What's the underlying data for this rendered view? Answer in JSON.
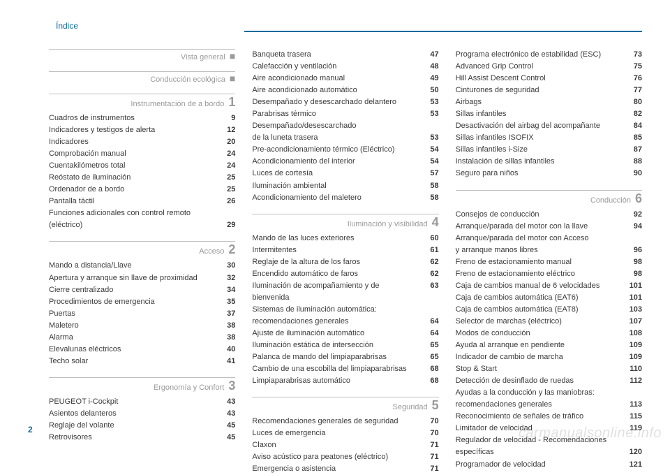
{
  "header": {
    "title": "Índice"
  },
  "page_number": "2",
  "watermark": "carmanualsonline.info",
  "colors": {
    "accent": "#0a6a9e",
    "muted": "#9a9a9a",
    "text": "#3a3a3a",
    "rule": "#bfbfbf",
    "bg": "#ffffff"
  },
  "col1": {
    "sections": [
      {
        "title": "Vista general",
        "marker": "■",
        "items": []
      },
      {
        "title": "Conducción ecológica",
        "marker": "■",
        "items": []
      },
      {
        "title": "Instrumentación de a bordo",
        "marker": "1",
        "items": [
          {
            "label": "Cuadros de instrumentos",
            "pg": "9"
          },
          {
            "label": "Indicadores y testigos de alerta",
            "pg": "12"
          },
          {
            "label": "Indicadores",
            "pg": "20"
          },
          {
            "label": "Comprobación manual",
            "pg": "24"
          },
          {
            "label": "Cuentakilómetros total",
            "pg": "24"
          },
          {
            "label": "Reóstato de iluminación",
            "pg": "25"
          },
          {
            "label": "Ordenador de a bordo",
            "pg": "25"
          },
          {
            "label": "Pantalla táctil",
            "pg": "26"
          },
          {
            "label": "Funciones adicionales con control remoto",
            "cont": true
          },
          {
            "label": "(eléctrico)",
            "pg": "29"
          }
        ]
      },
      {
        "title": "Acceso",
        "marker": "2",
        "items": [
          {
            "label": "Mando a distancia/Llave",
            "pg": "30"
          },
          {
            "label": "Apertura y arranque sin llave de proximidad",
            "pg": "32"
          },
          {
            "label": "Cierre centralizado",
            "pg": "34"
          },
          {
            "label": "Procedimientos de emergencia",
            "pg": "35"
          },
          {
            "label": "Puertas",
            "pg": "37"
          },
          {
            "label": "Maletero",
            "pg": "38"
          },
          {
            "label": "Alarma",
            "pg": "38"
          },
          {
            "label": "Elevalunas eléctricos",
            "pg": "40"
          },
          {
            "label": "Techo solar",
            "pg": "41"
          }
        ]
      },
      {
        "title": "Ergonomía y Confort",
        "marker": "3",
        "items": [
          {
            "label": "PEUGEOT i-Cockpit",
            "pg": "43"
          },
          {
            "label": "Asientos delanteros",
            "pg": "43"
          },
          {
            "label": "Reglaje del volante",
            "pg": "45"
          },
          {
            "label": "Retrovisores",
            "pg": "45"
          }
        ]
      }
    ]
  },
  "col2": {
    "top_items": [
      {
        "label": "Banqueta trasera",
        "pg": "47"
      },
      {
        "label": "Calefacción y ventilación",
        "pg": "48"
      },
      {
        "label": "Aire acondicionado manual",
        "pg": "49"
      },
      {
        "label": "Aire acondicionado automático",
        "pg": "50"
      },
      {
        "label": "Desempañado y desescarchado delantero",
        "pg": "53"
      },
      {
        "label": "Parabrisas térmico",
        "pg": "53"
      },
      {
        "label": "Desempañado/desescarchado",
        "cont": true
      },
      {
        "label": "de la luneta trasera",
        "pg": "53"
      },
      {
        "label": "Pre-acondicionamiento térmico (Eléctrico)",
        "pg": "54"
      },
      {
        "label": "Acondicionamiento del interior",
        "pg": "54"
      },
      {
        "label": "Luces de cortesía",
        "pg": "57"
      },
      {
        "label": "Iluminación ambiental",
        "pg": "58"
      },
      {
        "label": "Acondicionamiento del maletero",
        "pg": "58"
      }
    ],
    "sections": [
      {
        "title": "Iluminación y visibilidad",
        "marker": "4",
        "items": [
          {
            "label": "Mando de las luces exteriores",
            "pg": "60"
          },
          {
            "label": "Intermitentes",
            "pg": "61"
          },
          {
            "label": "Reglaje de la altura de los faros",
            "pg": "62"
          },
          {
            "label": "Encendido automático de faros",
            "pg": "62"
          },
          {
            "label": "Iluminación de acompañamiento y de bienvenida",
            "pg": "63"
          },
          {
            "label": "Sistemas de iluminación automática:",
            "cont": true
          },
          {
            "label": "recomendaciones generales",
            "pg": "64"
          },
          {
            "label": "Ajuste de iluminación automático",
            "pg": "64"
          },
          {
            "label": "Iluminación estática de intersección",
            "pg": "65"
          },
          {
            "label": "Palanca de mando del limpiaparabrisas",
            "pg": "65"
          },
          {
            "label": "Cambio de una escobilla del limpiaparabrisas",
            "pg": "68"
          },
          {
            "label": "Limpiaparabrisas automático",
            "pg": "68"
          }
        ]
      },
      {
        "title": "Seguridad",
        "marker": "5",
        "items": [
          {
            "label": "Recomendaciones generales de seguridad",
            "pg": "70"
          },
          {
            "label": "Luces de emergencia",
            "pg": "70"
          },
          {
            "label": "Claxon",
            "pg": "71"
          },
          {
            "label": "Aviso acústico para peatones (eléctrico)",
            "pg": "71"
          },
          {
            "label": "Emergencia o asistencia",
            "pg": "71"
          }
        ]
      }
    ]
  },
  "col3": {
    "top_items": [
      {
        "label": "Programa electrónico de estabilidad (ESC)",
        "pg": "73"
      },
      {
        "label": "Advanced Grip Control",
        "pg": "75"
      },
      {
        "label": "Hill Assist Descent Control",
        "pg": "76"
      },
      {
        "label": "Cinturones de seguridad",
        "pg": "77"
      },
      {
        "label": "Airbags",
        "pg": "80"
      },
      {
        "label": "Sillas infantiles",
        "pg": "82"
      },
      {
        "label": "Desactivación del airbag del acompañante",
        "pg": "84"
      },
      {
        "label": "Sillas infantiles ISOFIX",
        "pg": "85"
      },
      {
        "label": "Sillas infantiles i-Size",
        "pg": "87"
      },
      {
        "label": "Instalación de sillas infantiles",
        "pg": "88"
      },
      {
        "label": "Seguro para niños",
        "pg": "90"
      }
    ],
    "sections": [
      {
        "title": "Conducción",
        "marker": "6",
        "items": [
          {
            "label": "Consejos de conducción",
            "pg": "92"
          },
          {
            "label": "Arranque/parada del motor con la llave",
            "pg": "94"
          },
          {
            "label": "Arranque/parada del motor con Acceso",
            "cont": true
          },
          {
            "label": "y arranque manos libres",
            "pg": "96"
          },
          {
            "label": "Freno de estacionamiento manual",
            "pg": "98"
          },
          {
            "label": "Freno de estacionamiento eléctrico",
            "pg": "98"
          },
          {
            "label": "Caja de cambios manual de 6 velocidades",
            "pg": "101"
          },
          {
            "label": "Caja de cambios automática (EAT6)",
            "pg": "101"
          },
          {
            "label": "Caja de cambios automática (EAT8)",
            "pg": "103"
          },
          {
            "label": "Selector de marchas (eléctrico)",
            "pg": "107"
          },
          {
            "label": "Modos de conducción",
            "pg": "108"
          },
          {
            "label": "Ayuda al arranque en pendiente",
            "pg": "109"
          },
          {
            "label": "Indicador de cambio de marcha",
            "pg": "109"
          },
          {
            "label": "Stop & Start",
            "pg": "110"
          },
          {
            "label": "Detección de desinflado de ruedas",
            "pg": "112"
          },
          {
            "label": "Ayudas a la conducción y las maniobras:",
            "cont": true
          },
          {
            "label": "recomendaciones generales",
            "pg": "113"
          },
          {
            "label": "Reconocimiento de señales de tráfico",
            "pg": "115"
          },
          {
            "label": "Limitador de velocidad",
            "pg": "119"
          },
          {
            "label": "Regulador de velocidad - Recomendaciones",
            "cont": true
          },
          {
            "label": "específicas",
            "pg": "120"
          },
          {
            "label": "Programador de velocidad",
            "pg": "121"
          }
        ]
      }
    ]
  }
}
